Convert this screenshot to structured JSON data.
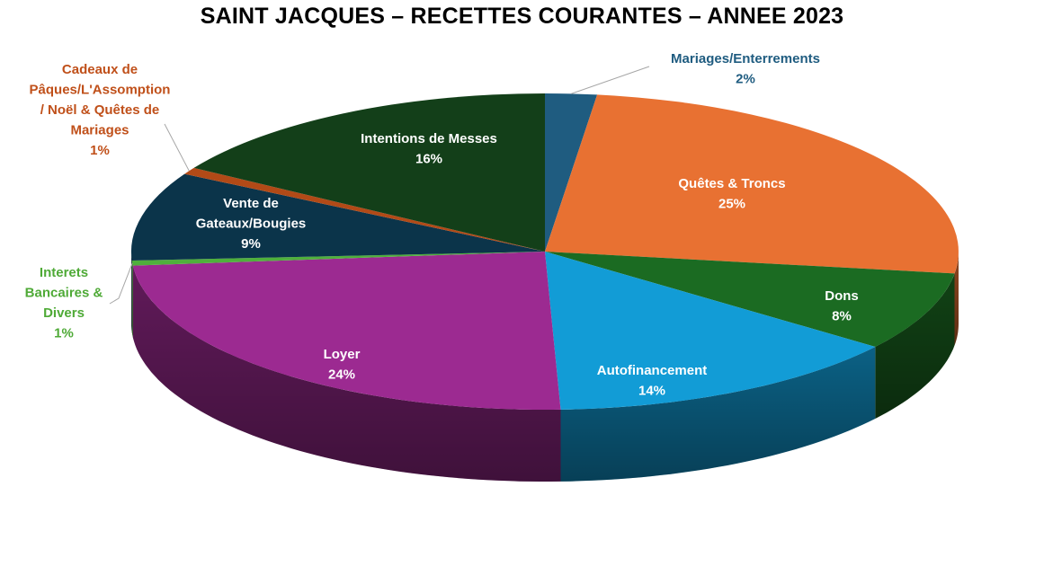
{
  "chart_data": {
    "type": "pie",
    "title": "SAINT JACQUES – RECETTES COURANTES – ANNEE 2023",
    "slices": [
      {
        "name": "Mariages/Enterrements",
        "label_lines": [
          "Mariages/Enterrements"
        ],
        "value": 2,
        "pct_label": "2%",
        "color": "#1F5C80",
        "label_color": "#1F5C80",
        "outside": true
      },
      {
        "name": "Quêtes & Troncs",
        "label_lines": [
          "Quêtes & Troncs"
        ],
        "value": 25,
        "pct_label": "25%",
        "color": "#E87132",
        "label_color": "#FFFFFF",
        "outside": false
      },
      {
        "name": "Dons",
        "label_lines": [
          "Dons"
        ],
        "value": 8,
        "pct_label": "8%",
        "color": "#1B6B22",
        "label_color": "#FFFFFF",
        "outside": false
      },
      {
        "name": "Autofinancement",
        "label_lines": [
          "Autofinancement"
        ],
        "value": 14,
        "pct_label": "14%",
        "color": "#129CD6",
        "label_color": "#FFFFFF",
        "outside": false
      },
      {
        "name": "Loyer",
        "label_lines": [
          "Loyer"
        ],
        "value": 24,
        "pct_label": "24%",
        "color": "#9C2A91",
        "label_color": "#FFFFFF",
        "outside": false
      },
      {
        "name": "Interets Bancaires & Divers",
        "label_lines": [
          "Interets",
          "Bancaires &",
          "Divers"
        ],
        "value": 0.5,
        "pct_label": "1%",
        "color": "#4FB03C",
        "label_color": "#4FAA37",
        "outside": true
      },
      {
        "name": "Vente de Gateaux/Bougies",
        "label_lines": [
          "Vente de",
          "Gateaux/Bougies"
        ],
        "value": 9,
        "pct_label": "9%",
        "color": "#0B344A",
        "label_color": "#FFFFFF",
        "outside": false
      },
      {
        "name": "Cadeaux de Pâques/L'Assomption / Noël & Quêtes de Mariages",
        "label_lines": [
          "Cadeaux de",
          "Pâques/L'Assomption",
          "/ Noël & Quêtes de",
          "Mariages"
        ],
        "value": 0.7,
        "pct_label": "1%",
        "color": "#B24A17",
        "label_color": "#C0501A",
        "outside": true
      },
      {
        "name": "Intentions de Messes",
        "label_lines": [
          "Intentions de Messes"
        ],
        "value": 16,
        "pct_label": "16%",
        "color": "#133F19",
        "label_color": "#FFFFFF",
        "outside": false
      }
    ],
    "legend": "none",
    "style": "3d-exploded-tilted"
  }
}
